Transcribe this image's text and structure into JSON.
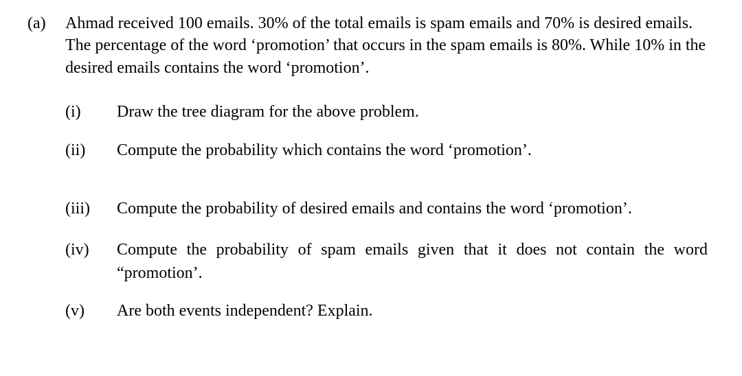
{
  "typography": {
    "font_family": "Times New Roman",
    "base_fontsize_pt": 18,
    "text_color": "#000000",
    "background_color": "#ffffff"
  },
  "question": {
    "part_label": "(a)",
    "intro": "Ahmad received 100 emails. 30% of the total emails is spam emails and 70% is desired emails. The percentage of the word ‘promotion’ that occurs in the spam emails is 80%. While 10% in the desired emails contains the word ‘promotion’.",
    "subparts": [
      {
        "label": "(i)",
        "text": "Draw the tree diagram for the above problem.",
        "justify": false
      },
      {
        "label": "(ii)",
        "text": "Compute the probability which contains the word ‘promotion’.",
        "justify": false
      },
      {
        "label": "(iii)",
        "text": "Compute the probability of desired emails and contains the word ‘promotion’.",
        "justify": true
      },
      {
        "label": "(iv)",
        "text": "Compute the probability of spam emails given that it does not contain the word “promotion’.",
        "justify": true
      },
      {
        "label": "(v)",
        "text": "Are both events independent? Explain.",
        "justify": false
      }
    ]
  }
}
